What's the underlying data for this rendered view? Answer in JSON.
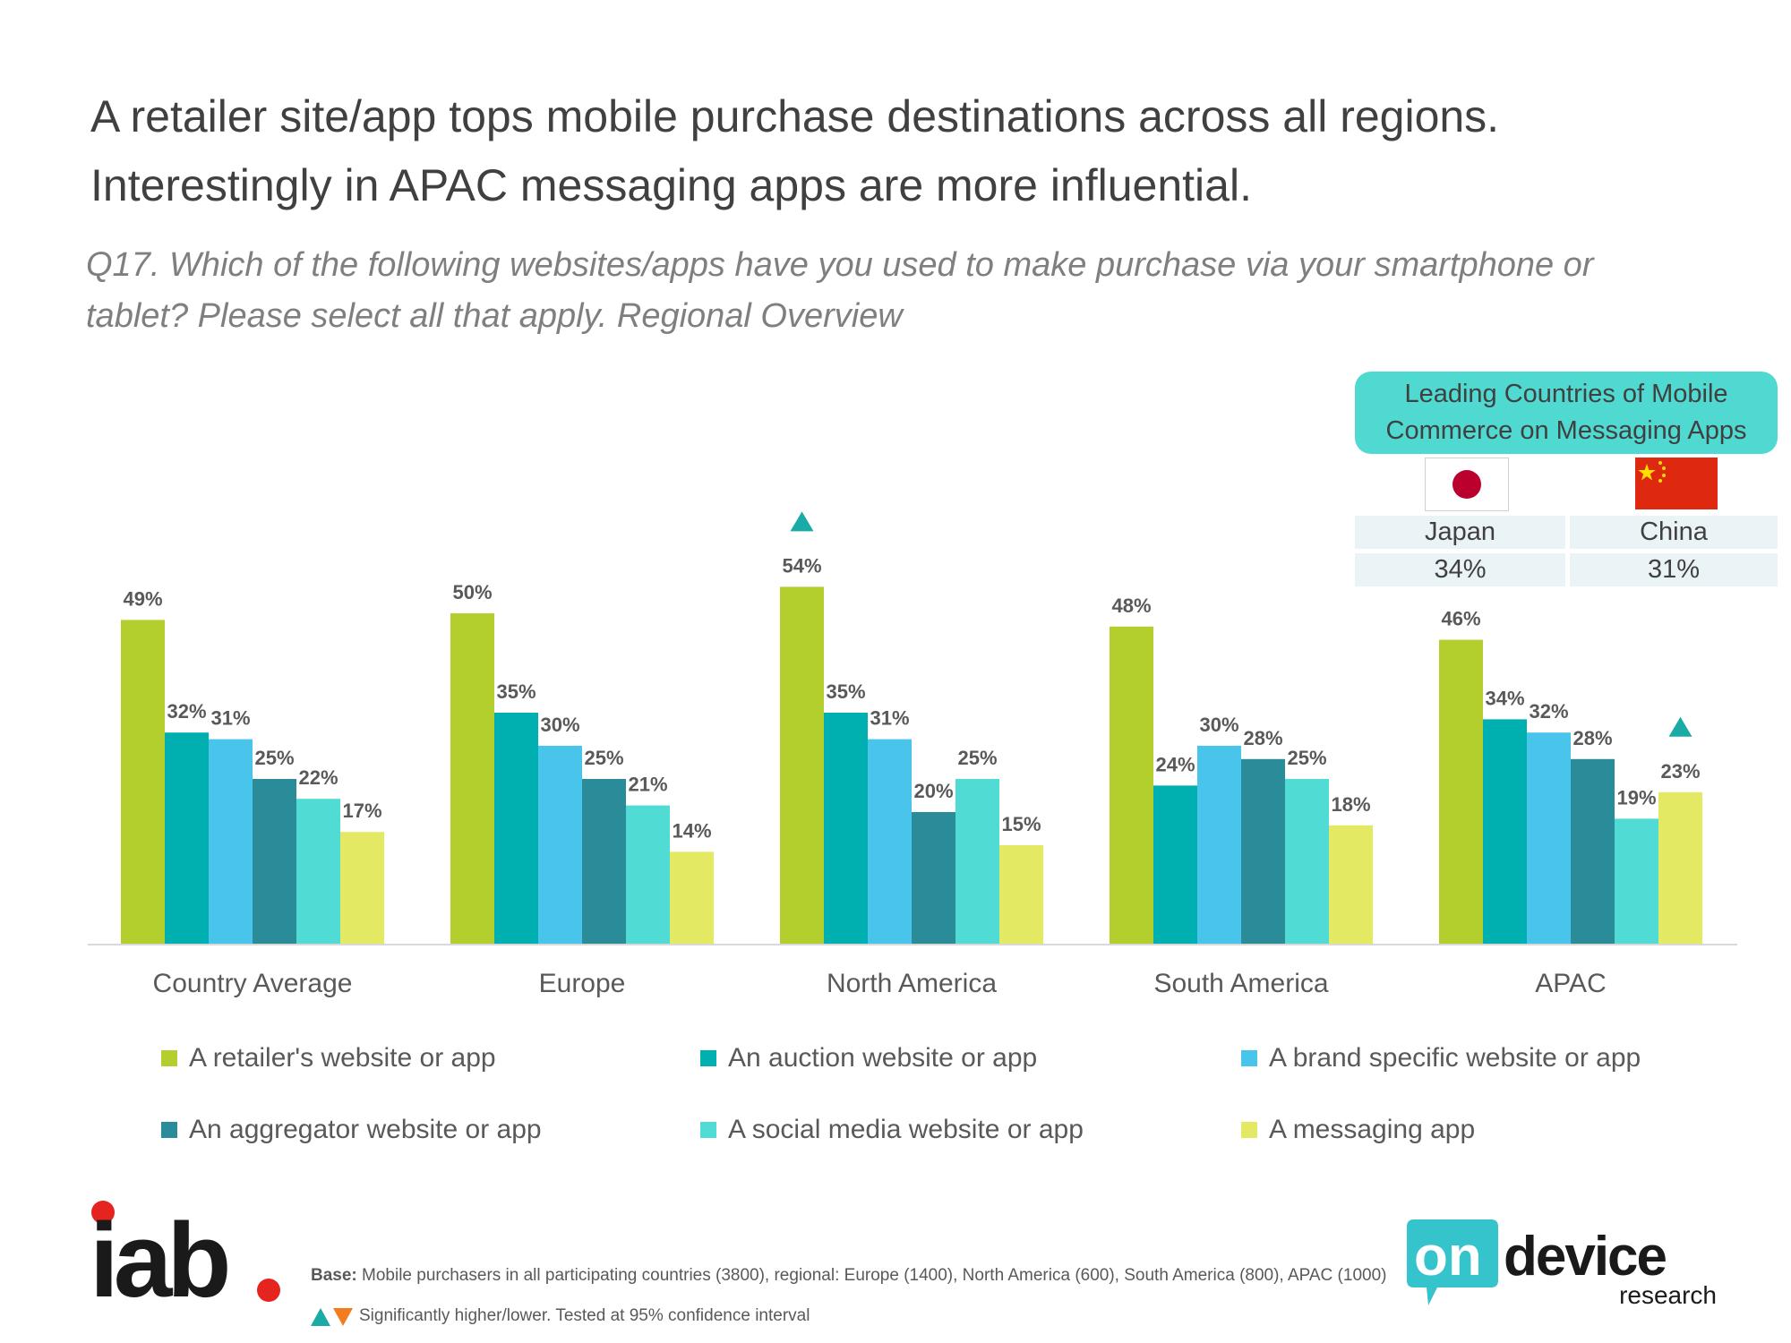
{
  "header": {
    "title": "A retailer site/app tops mobile purchase destinations across all regions.\nInterestingly in APAC messaging apps are more influential.",
    "question": "Q17. Which of the following websites/apps have you used to make purchase via your smartphone or\ntablet? Please select all that apply.  Regional Overview"
  },
  "chart_data": {
    "type": "bar",
    "title": "",
    "xlabel": "",
    "ylabel": "",
    "ylim": [
      0,
      60
    ],
    "grid": false,
    "legend_position": "bottom",
    "categories": [
      "Country Average",
      "Europe",
      "North America",
      "South America",
      "APAC"
    ],
    "series": [
      {
        "name": "A retailer's website or app",
        "color": "#b2cf2e",
        "values": [
          49,
          50,
          54,
          48,
          46
        ]
      },
      {
        "name": "An auction website or app",
        "color": "#00b0b0",
        "values": [
          32,
          35,
          35,
          24,
          34
        ]
      },
      {
        "name": "A brand specific website or app",
        "color": "#49c4ea",
        "values": [
          31,
          30,
          31,
          30,
          32
        ]
      },
      {
        "name": "An aggregator website or app",
        "color": "#2b8c99",
        "values": [
          25,
          25,
          20,
          28,
          28
        ]
      },
      {
        "name": "A social media website or app",
        "color": "#50dcd4",
        "values": [
          22,
          21,
          25,
          25,
          19
        ]
      },
      {
        "name": "A messaging app",
        "color": "#e3e962",
        "values": [
          17,
          14,
          15,
          18,
          23
        ]
      }
    ],
    "value_suffix": "%",
    "significance_markers": [
      {
        "category": "North America",
        "series": "A retailer's website or app",
        "direction": "higher"
      },
      {
        "category": "APAC",
        "series": "A messaging app",
        "direction": "higher"
      }
    ],
    "marker_colors": {
      "higher": "#1aaba7",
      "lower": "#f47b20"
    }
  },
  "callout": {
    "title": "Leading Countries of Mobile\nCommerce on Messaging Apps",
    "countries": [
      {
        "name": "Japan",
        "value": "34%",
        "flag": "japan-flag"
      },
      {
        "name": "China",
        "value": "31%",
        "flag": "china-flag"
      }
    ]
  },
  "footer": {
    "base_label": "Base:",
    "base_text": "Mobile purchasers in all participating countries (3800), regional: Europe (1400), North America (600), South America (800), APAC (1000)",
    "significance_text": "Significantly higher/lower. Tested at 95% confidence interval",
    "logo_left": "iab.",
    "logo_right_main": "on",
    "logo_right_second": "device",
    "logo_right_sub": "research"
  }
}
